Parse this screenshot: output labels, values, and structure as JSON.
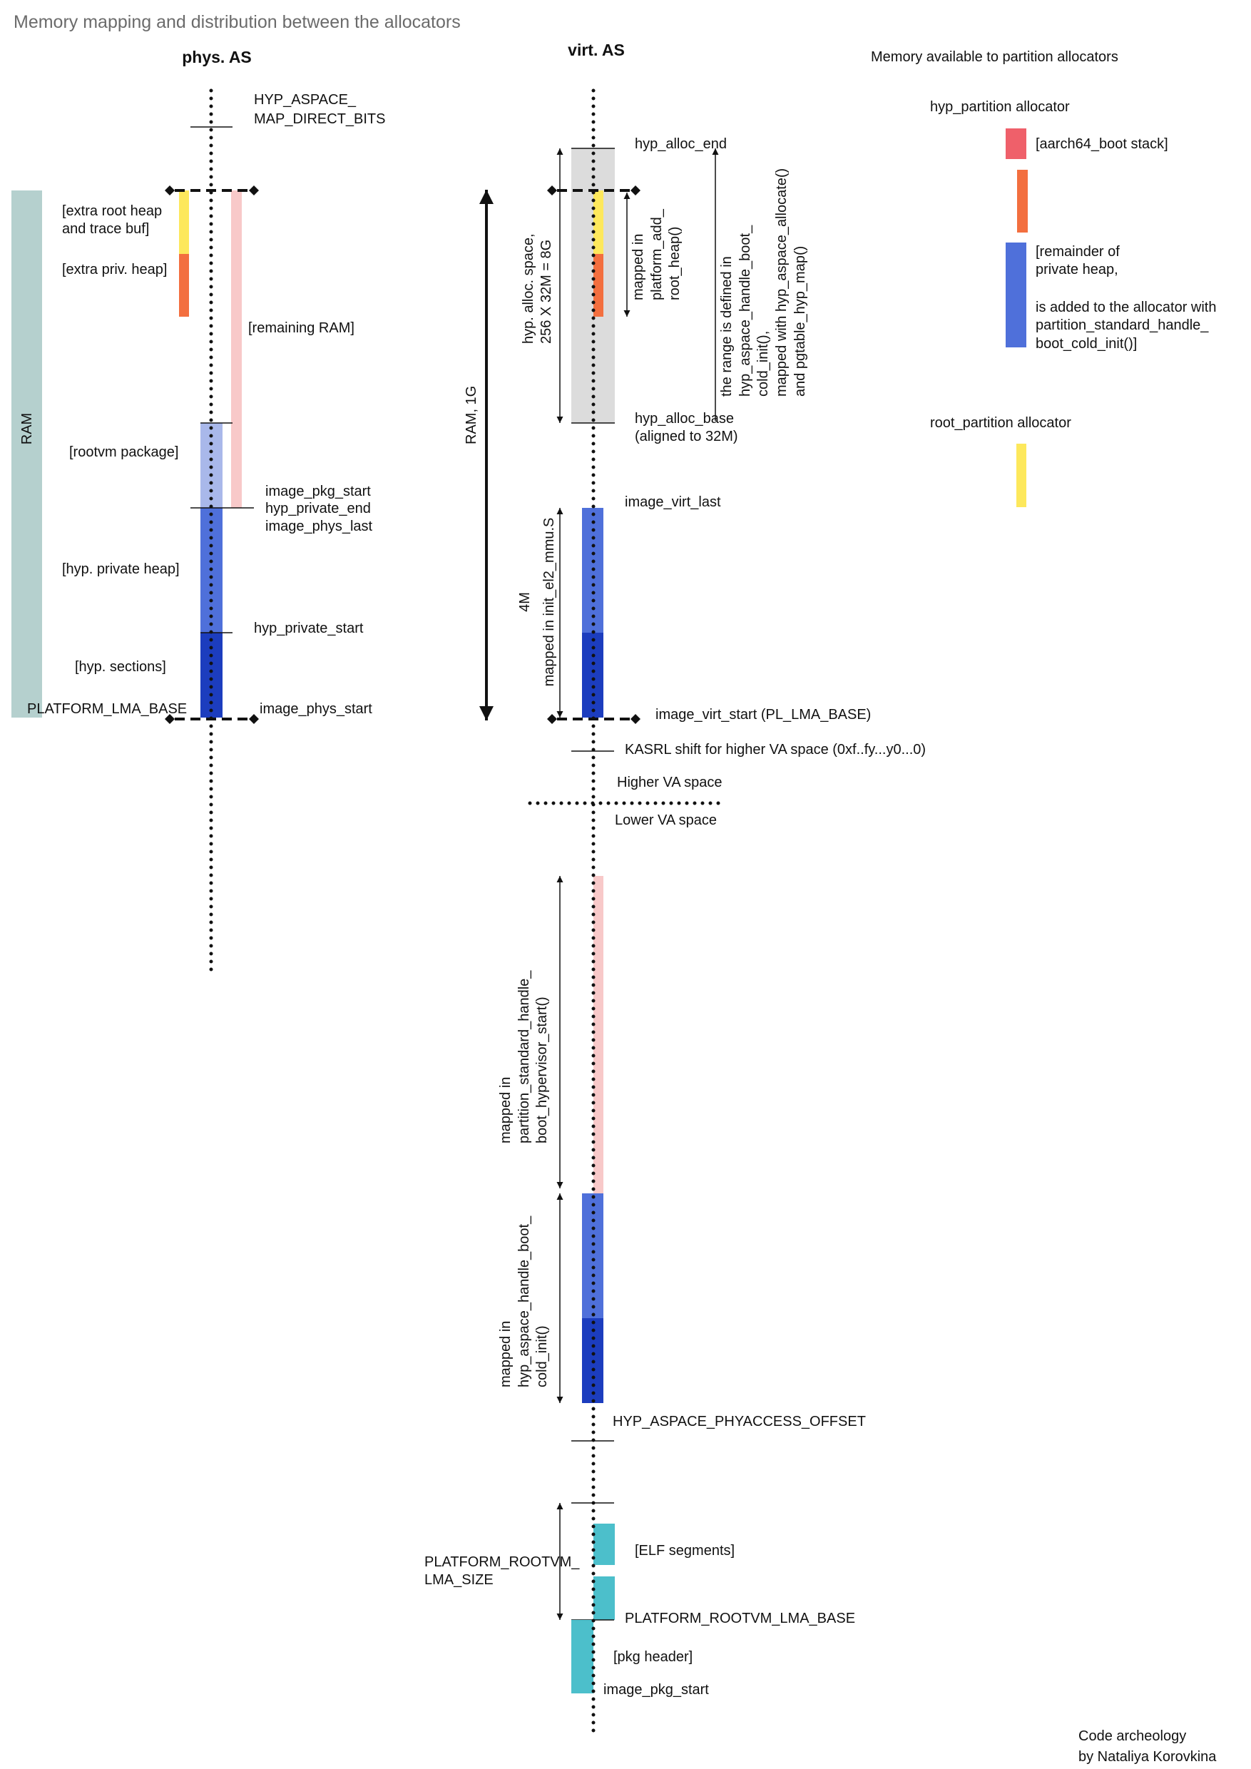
{
  "title": "Memory mapping and distribution between the allocators",
  "colors": {
    "ram": "#b5d0ce",
    "yellow": "#fde85c",
    "orange": "#f36f3f",
    "pink": "#f8c9c9",
    "light_blue": "#a9b8ea",
    "medium_blue": "#4f70da",
    "dark_blue": "#1c3dbe",
    "gray": "#dcdcdc",
    "teal": "#4cbfcb",
    "red": "#ef606a"
  },
  "phys": {
    "heading": "phys. AS",
    "direct_bits": [
      "HYP_ASPACE_",
      "MAP_DIRECT_BITS"
    ],
    "ram": "RAM",
    "extra_root_heap": [
      "[extra root heap",
      "and trace buf]"
    ],
    "extra_priv_heap": "[extra priv. heap]",
    "remaining_ram": "[remaining RAM]",
    "rootvm_package": "[rootvm package]",
    "image_pkg_start": "image_pkg_start",
    "hyp_private_end": "hyp_private_end",
    "image_phys_last": "image_phys_last",
    "hyp_private_heap": "[hyp. private heap]",
    "hyp_private_start": "hyp_private_start",
    "hyp_sections": "[hyp. sections]",
    "platform_lma_base": "PLATFORM_LMA_BASE",
    "image_phys_start": "image_phys_start"
  },
  "virt": {
    "heading": "virt. AS",
    "ram_1g": "RAM, 1G",
    "hyp_alloc_end": "hyp_alloc_end",
    "hyp_alloc_base": "hyp_alloc_base",
    "aligned": "(aligned to 32M)",
    "alloc_space": [
      "hyp. alloc. space,",
      "256 X 32M = 8G"
    ],
    "platform_add": [
      "mapped in",
      "platform_add_",
      "root_heap()"
    ],
    "range_note": [
      "the range is defined in",
      "hyp_aspace_handle_boot_",
      "cold_init(),",
      "mapped with hyp_aspace_allocate()",
      "and pgtable_hyp_map()"
    ],
    "image_virt_last": "image_virt_last",
    "size_4m": "4M",
    "init_el2": "mapped in init_el2_mmu.S",
    "image_virt_start": "image_virt_start (PL_LMA_BASE)",
    "kasrl": "KASRL shift for higher VA space (0xf..fy...y0...0)",
    "higher_va": "Higher VA space",
    "lower_va": "Lower VA space",
    "partition_start_note": [
      "mapped in",
      "partition_standard_handle_",
      "boot_hypervisor_start()"
    ],
    "cold_init_note": [
      "mapped in",
      "hyp_aspace_handle_boot_",
      "cold_init()"
    ],
    "phyaccess_offset": "HYP_ASPACE_PHYACCESS_OFFSET",
    "rootvm_lma_size": [
      "PLATFORM_ROOTVM_",
      "LMA_SIZE"
    ],
    "elf_segments": "[ELF segments]",
    "rootvm_lma_base": "PLATFORM_ROOTVM_LMA_BASE",
    "pkg_header": "[pkg header]",
    "image_pkg_start": "image_pkg_start"
  },
  "legend": {
    "title": "Memory available to partition allocators",
    "hyp_partition": "hyp_partition allocator",
    "boot_stack": "[aarch64_boot stack]",
    "remainder": [
      "[remainder of",
      "private heap,",
      "is added to the allocator with",
      "partition_standard_handle_",
      "boot_cold_init()]"
    ],
    "root_partition": "root_partition allocator"
  },
  "credit": [
    "Code archeology",
    "by Nataliya Korovkina"
  ]
}
